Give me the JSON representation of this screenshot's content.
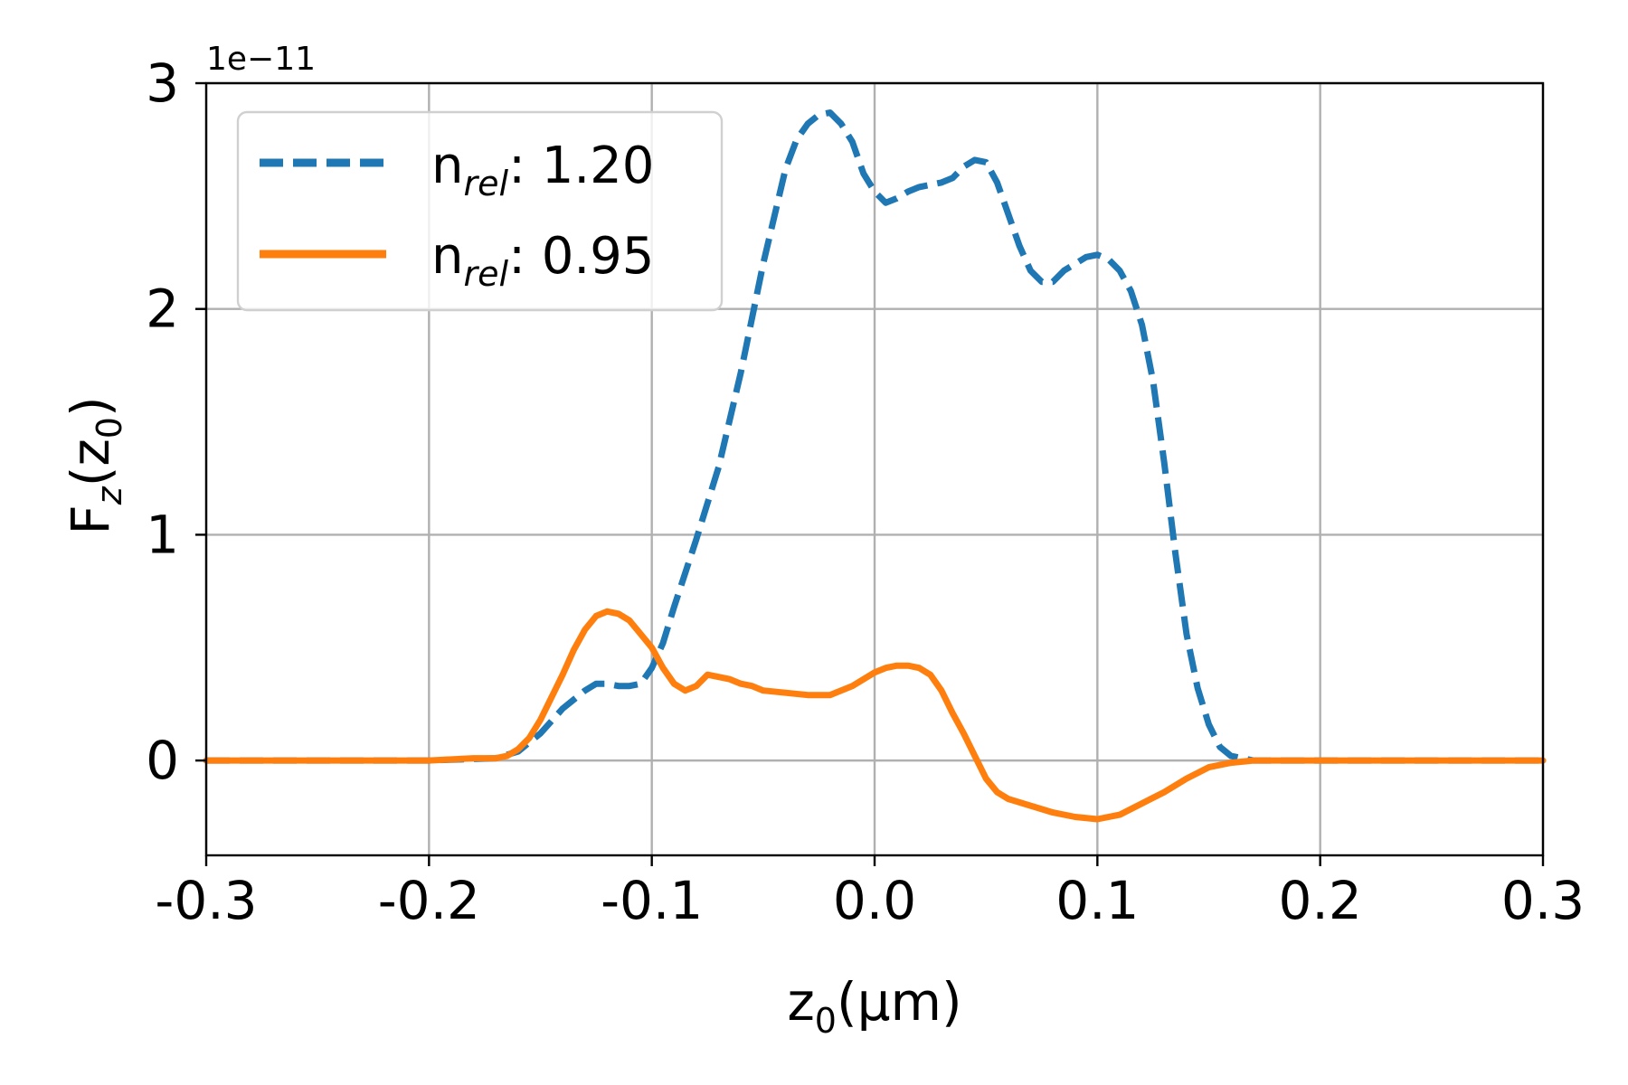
{
  "chart_data": {
    "type": "line",
    "xlabel": "z",
    "xlabel_sub": "0",
    "xlabel_unit": "(μm)",
    "ylabel_base": "F",
    "ylabel_sub": "z",
    "ylabel_arg": "(z",
    "ylabel_arg_sub": "0",
    "ylabel_close": ")",
    "y_scale_label": "1e−11",
    "xlim": [
      -0.3,
      0.3
    ],
    "ylim": [
      -0.42,
      3.0
    ],
    "x_ticks": [
      -0.3,
      -0.2,
      -0.1,
      0.0,
      0.1,
      0.2,
      0.3
    ],
    "x_tick_labels": [
      "-0.3",
      "-0.2",
      "-0.1",
      "0.0",
      "0.1",
      "0.2",
      "0.3"
    ],
    "y_ticks": [
      0,
      1,
      2,
      3
    ],
    "y_tick_labels": [
      "0",
      "1",
      "2",
      "3"
    ],
    "grid": true,
    "legend_position": "upper-left",
    "series": [
      {
        "legend_base": "n",
        "legend_sub": "rel",
        "legend_value": ": 1.20",
        "color": "#1f77b4",
        "style": "dashed",
        "x": [
          -0.3,
          -0.25,
          -0.2,
          -0.17,
          -0.16,
          -0.15,
          -0.14,
          -0.13,
          -0.125,
          -0.12,
          -0.115,
          -0.11,
          -0.105,
          -0.1,
          -0.095,
          -0.09,
          -0.08,
          -0.07,
          -0.06,
          -0.05,
          -0.04,
          -0.035,
          -0.03,
          -0.025,
          -0.02,
          -0.015,
          -0.01,
          -0.005,
          0.0,
          0.005,
          0.01,
          0.015,
          0.02,
          0.025,
          0.03,
          0.035,
          0.04,
          0.045,
          0.05,
          0.055,
          0.06,
          0.065,
          0.07,
          0.075,
          0.08,
          0.085,
          0.09,
          0.095,
          0.1,
          0.105,
          0.11,
          0.115,
          0.12,
          0.125,
          0.13,
          0.135,
          0.14,
          0.145,
          0.15,
          0.155,
          0.16,
          0.165,
          0.17,
          0.18,
          0.2,
          0.25,
          0.3
        ],
        "y": [
          0.0,
          0.0,
          0.0,
          0.01,
          0.04,
          0.12,
          0.23,
          0.31,
          0.34,
          0.34,
          0.33,
          0.33,
          0.34,
          0.41,
          0.52,
          0.68,
          0.98,
          1.3,
          1.72,
          2.2,
          2.62,
          2.75,
          2.82,
          2.86,
          2.87,
          2.82,
          2.74,
          2.6,
          2.52,
          2.47,
          2.49,
          2.52,
          2.54,
          2.55,
          2.56,
          2.58,
          2.63,
          2.66,
          2.65,
          2.56,
          2.42,
          2.28,
          2.17,
          2.12,
          2.12,
          2.17,
          2.2,
          2.23,
          2.24,
          2.22,
          2.17,
          2.08,
          1.93,
          1.68,
          1.32,
          0.92,
          0.56,
          0.32,
          0.16,
          0.06,
          0.02,
          0.01,
          0.0,
          0.0,
          0.0,
          0.0,
          0.0
        ]
      },
      {
        "legend_base": "n",
        "legend_sub": "rel",
        "legend_value": ": 0.95",
        "color": "#ff7f0e",
        "style": "solid",
        "x": [
          -0.3,
          -0.25,
          -0.2,
          -0.18,
          -0.17,
          -0.165,
          -0.16,
          -0.155,
          -0.15,
          -0.145,
          -0.14,
          -0.135,
          -0.13,
          -0.125,
          -0.12,
          -0.115,
          -0.11,
          -0.105,
          -0.1,
          -0.095,
          -0.09,
          -0.085,
          -0.08,
          -0.075,
          -0.07,
          -0.065,
          -0.06,
          -0.055,
          -0.05,
          -0.04,
          -0.03,
          -0.02,
          -0.01,
          0.0,
          0.005,
          0.01,
          0.015,
          0.02,
          0.025,
          0.03,
          0.035,
          0.04,
          0.045,
          0.05,
          0.055,
          0.06,
          0.07,
          0.08,
          0.09,
          0.1,
          0.11,
          0.12,
          0.13,
          0.14,
          0.15,
          0.16,
          0.17,
          0.2,
          0.25,
          0.3
        ],
        "y": [
          0.0,
          0.0,
          0.0,
          0.01,
          0.01,
          0.02,
          0.05,
          0.1,
          0.18,
          0.28,
          0.38,
          0.49,
          0.58,
          0.64,
          0.66,
          0.65,
          0.62,
          0.56,
          0.5,
          0.41,
          0.34,
          0.31,
          0.33,
          0.38,
          0.37,
          0.36,
          0.34,
          0.33,
          0.31,
          0.3,
          0.29,
          0.29,
          0.33,
          0.39,
          0.41,
          0.42,
          0.42,
          0.41,
          0.38,
          0.31,
          0.21,
          0.12,
          0.02,
          -0.08,
          -0.14,
          -0.17,
          -0.2,
          -0.23,
          -0.25,
          -0.26,
          -0.24,
          -0.19,
          -0.14,
          -0.08,
          -0.03,
          -0.01,
          0.0,
          0.0,
          0.0,
          0.0
        ]
      }
    ]
  }
}
